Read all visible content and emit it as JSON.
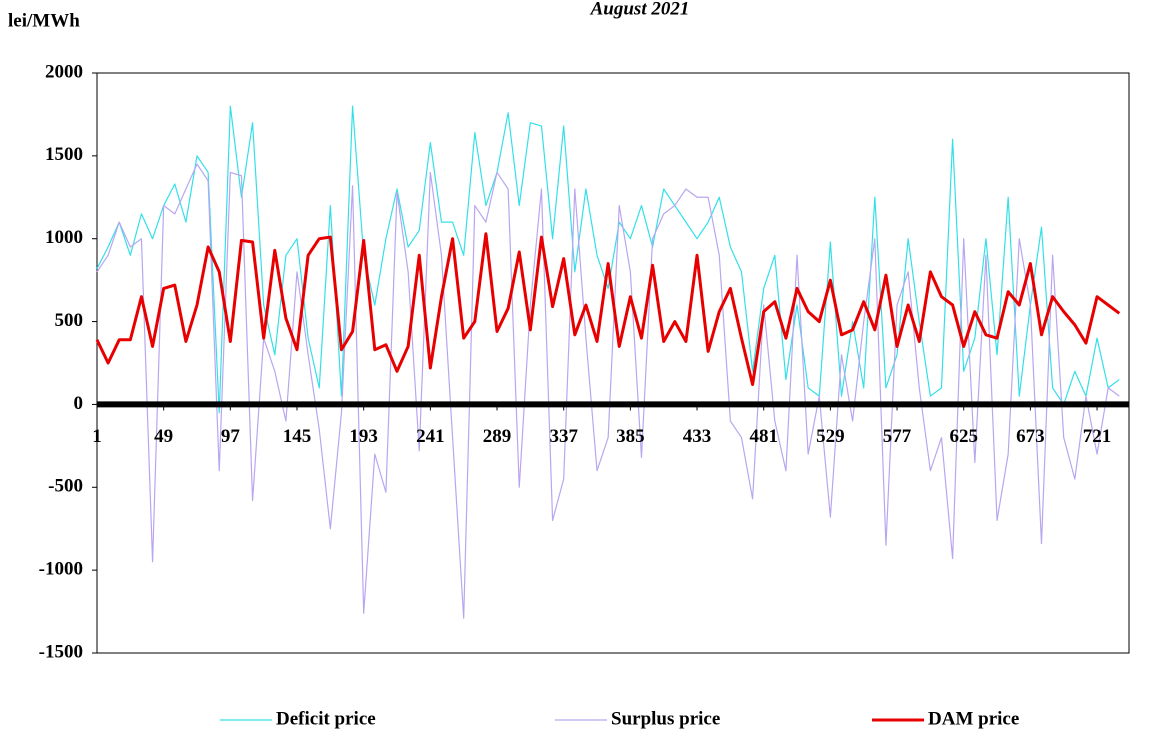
{
  "chart_data": {
    "type": "line",
    "title": "August 2021",
    "y_label": "lei/MWh",
    "x": [
      1,
      9,
      17,
      25,
      33,
      41,
      49,
      57,
      65,
      73,
      81,
      89,
      97,
      105,
      113,
      121,
      129,
      137,
      145,
      153,
      161,
      169,
      177,
      185,
      193,
      201,
      209,
      217,
      225,
      233,
      241,
      249,
      257,
      265,
      273,
      281,
      289,
      297,
      305,
      313,
      321,
      329,
      337,
      345,
      353,
      361,
      369,
      377,
      385,
      393,
      401,
      409,
      417,
      425,
      433,
      441,
      449,
      457,
      465,
      473,
      481,
      489,
      497,
      505,
      513,
      521,
      529,
      537,
      545,
      553,
      561,
      569,
      577,
      585,
      593,
      601,
      609,
      617,
      625,
      633,
      641,
      649,
      657,
      665,
      673,
      681,
      689,
      697,
      705,
      713,
      721,
      729,
      737
    ],
    "series": [
      {
        "name": "Deficit price",
        "color": "#33e0e8",
        "width": 1.2,
        "values": [
          820,
          950,
          1100,
          900,
          1150,
          1000,
          1200,
          1330,
          1100,
          1500,
          1400,
          -50,
          1800,
          1250,
          1700,
          600,
          300,
          900,
          1000,
          400,
          100,
          1200,
          50,
          1800,
          900,
          600,
          1000,
          1300,
          950,
          1050,
          1580,
          1100,
          1100,
          900,
          1640,
          1200,
          1400,
          1760,
          1200,
          1700,
          1680,
          1000,
          1680,
          800,
          1300,
          900,
          700,
          1100,
          1000,
          1200,
          950,
          1300,
          1200,
          1100,
          1000,
          1100,
          1250,
          950,
          800,
          200,
          700,
          900,
          150,
          600,
          100,
          50,
          980,
          50,
          500,
          100,
          1250,
          100,
          300,
          1000,
          500,
          50,
          100,
          1600,
          200,
          400,
          1000,
          300,
          1250,
          50,
          600,
          1070,
          100,
          0,
          200,
          50,
          400,
          100,
          150
        ]
      },
      {
        "name": "Surplus price",
        "color": "#b9a6f0",
        "width": 1.2,
        "values": [
          800,
          900,
          1100,
          950,
          1000,
          -950,
          1200,
          1150,
          1300,
          1450,
          1350,
          -400,
          1400,
          1380,
          -580,
          400,
          200,
          -100,
          800,
          300,
          -150,
          -750,
          -50,
          1320,
          -1260,
          -300,
          -530,
          1280,
          800,
          -280,
          1400,
          900,
          -200,
          -1290,
          1200,
          1100,
          1400,
          1300,
          -500,
          600,
          1300,
          -700,
          -450,
          1300,
          400,
          -400,
          -200,
          1200,
          800,
          -320,
          1000,
          1150,
          1200,
          1300,
          1250,
          1250,
          900,
          -100,
          -200,
          -570,
          600,
          -100,
          -400,
          900,
          -300,
          50,
          -680,
          300,
          -100,
          500,
          1000,
          -850,
          600,
          800,
          100,
          -400,
          -200,
          -930,
          1000,
          -350,
          900,
          -700,
          -300,
          1000,
          600,
          -840,
          900,
          -200,
          -450,
          50,
          -300,
          100,
          50
        ]
      },
      {
        "name": "DAM price",
        "color": "#e80000",
        "width": 3,
        "values": [
          390,
          250,
          390,
          390,
          650,
          350,
          700,
          720,
          380,
          600,
          950,
          800,
          380,
          990,
          980,
          400,
          930,
          520,
          330,
          900,
          1000,
          1010,
          330,
          440,
          990,
          330,
          360,
          200,
          350,
          900,
          220,
          650,
          1000,
          400,
          500,
          1030,
          440,
          580,
          920,
          450,
          1010,
          590,
          880,
          420,
          600,
          380,
          850,
          350,
          650,
          400,
          840,
          380,
          500,
          380,
          900,
          320,
          560,
          700,
          400,
          120,
          560,
          620,
          400,
          700,
          560,
          500,
          750,
          420,
          450,
          620,
          450,
          780,
          350,
          600,
          380,
          800,
          650,
          600,
          350,
          560,
          420,
          400,
          680,
          600,
          850,
          420,
          650,
          560,
          480,
          370,
          650,
          600,
          550
        ]
      }
    ],
    "xlim": [
      1,
      744
    ],
    "xticks": [
      1,
      49,
      97,
      145,
      193,
      241,
      289,
      337,
      385,
      433,
      481,
      529,
      577,
      625,
      673,
      721
    ],
    "ylim": [
      -1500,
      2000
    ],
    "yticks": [
      -1500,
      -1000,
      -500,
      0,
      500,
      1000,
      1500,
      2000
    ],
    "grid": false
  }
}
